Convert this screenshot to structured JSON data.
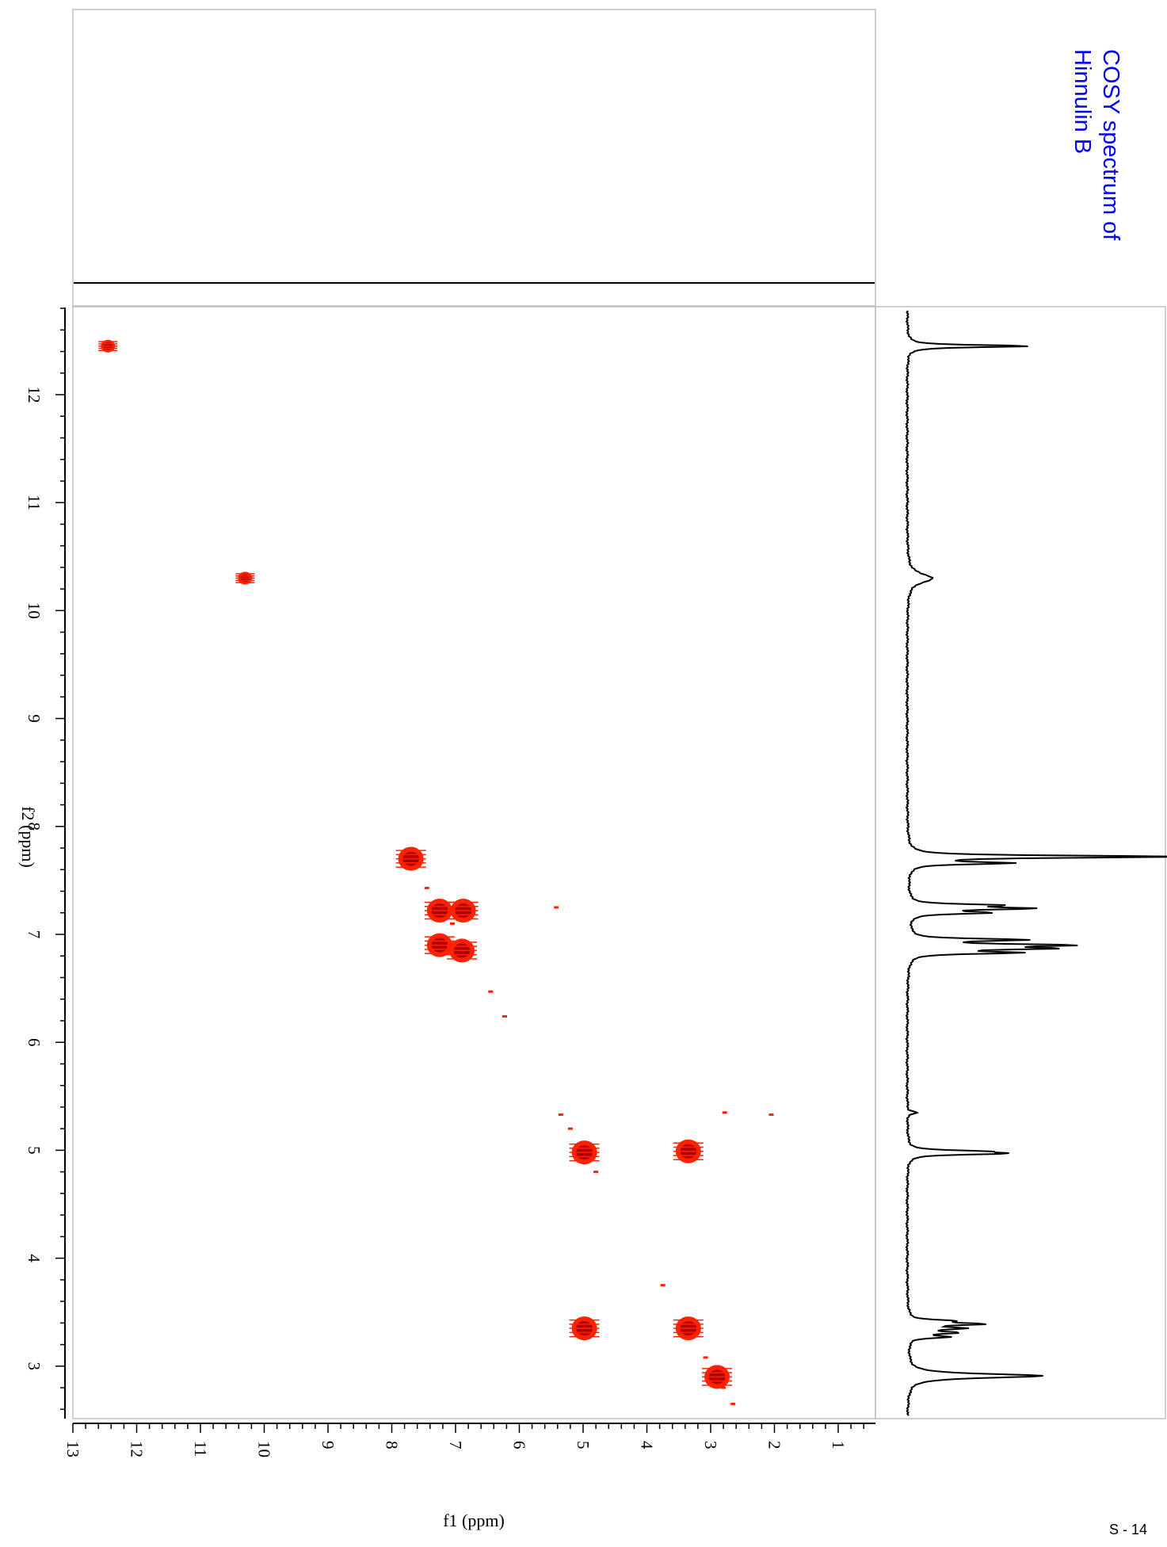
{
  "title": "COSY spectrum of\nHinnulin B",
  "title_color": "#0000ff",
  "page_number": "S - 14",
  "peak_color": "#ff2200",
  "peak_core_color": "#b00000",
  "chart_data": {
    "type": "heatmap",
    "title": "COSY spectrum of Hinnulin B",
    "xlabel": "f1 (ppm)",
    "ylabel": "f2 (ppm)",
    "f1_range": [
      13.0,
      0.6
    ],
    "f2_range": [
      12.8,
      2.5
    ],
    "f1_ticks": [
      "13",
      "12",
      "11",
      "10",
      "9",
      "8",
      "7",
      "6",
      "5",
      "4",
      "3",
      "2",
      "1"
    ],
    "f2_ticks": [
      "12",
      "11",
      "10",
      "9",
      "8",
      "7",
      "6",
      "5",
      "4",
      "3"
    ],
    "grid": false,
    "cross_peaks": [
      {
        "f1": 12.45,
        "f2": 12.45,
        "kind": "diagonal"
      },
      {
        "f1": 10.3,
        "f2": 10.3,
        "kind": "diagonal"
      },
      {
        "f1": 7.7,
        "f2": 7.7,
        "kind": "diagonal"
      },
      {
        "f1": 7.25,
        "f2": 7.22,
        "kind": "diagonal"
      },
      {
        "f1": 6.88,
        "f2": 7.22,
        "kind": "cross"
      },
      {
        "f1": 7.25,
        "f2": 6.9,
        "kind": "cross"
      },
      {
        "f1": 6.9,
        "f2": 6.85,
        "kind": "diagonal"
      },
      {
        "f1": 4.98,
        "f2": 4.98,
        "kind": "diagonal"
      },
      {
        "f1": 3.35,
        "f2": 4.99,
        "kind": "cross"
      },
      {
        "f1": 4.98,
        "f2": 3.35,
        "kind": "cross"
      },
      {
        "f1": 3.35,
        "f2": 3.35,
        "kind": "diagonal"
      },
      {
        "f1": 2.9,
        "f2": 2.9,
        "kind": "diagonal"
      }
    ],
    "minor_peaks": [
      {
        "f1": 7.45,
        "f2": 7.43
      },
      {
        "f1": 7.05,
        "f2": 7.1
      },
      {
        "f1": 6.45,
        "f2": 6.47
      },
      {
        "f1": 6.23,
        "f2": 6.24
      },
      {
        "f1": 5.35,
        "f2": 5.33
      },
      {
        "f1": 5.2,
        "f2": 5.2
      },
      {
        "f1": 4.8,
        "f2": 4.8
      },
      {
        "f1": 3.75,
        "f2": 3.75
      },
      {
        "f1": 3.08,
        "f2": 3.08
      },
      {
        "f1": 2.8,
        "f2": 2.8
      },
      {
        "f1": 2.65,
        "f2": 2.65
      },
      {
        "f1": 5.42,
        "f2": 7.25
      },
      {
        "f1": 2.78,
        "f2": 5.35
      },
      {
        "f1": 2.05,
        "f2": 5.33
      }
    ],
    "proton_1d_peaks": [
      {
        "ppm": 12.45,
        "intensity": 0.98
      },
      {
        "ppm": 10.3,
        "intensity": 0.2
      },
      {
        "ppm": 7.72,
        "intensity": 1.3
      },
      {
        "ppm": 7.72,
        "intensity": 0.9
      },
      {
        "ppm": 7.66,
        "intensity": 0.78
      },
      {
        "ppm": 7.27,
        "intensity": 0.65
      },
      {
        "ppm": 7.24,
        "intensity": 0.9
      },
      {
        "ppm": 7.2,
        "intensity": 0.6
      },
      {
        "ppm": 6.95,
        "intensity": 0.88
      },
      {
        "ppm": 6.9,
        "intensity": 1.18
      },
      {
        "ppm": 6.87,
        "intensity": 1.0
      },
      {
        "ppm": 6.83,
        "intensity": 0.8
      },
      {
        "ppm": 5.35,
        "intensity": 0.08
      },
      {
        "ppm": 4.99,
        "intensity": 0.48
      },
      {
        "ppm": 4.97,
        "intensity": 0.7
      },
      {
        "ppm": 3.42,
        "intensity": 0.3
      },
      {
        "ppm": 3.39,
        "intensity": 0.55
      },
      {
        "ppm": 3.35,
        "intensity": 0.4
      },
      {
        "ppm": 3.31,
        "intensity": 0.35
      },
      {
        "ppm": 3.27,
        "intensity": 0.3
      },
      {
        "ppm": 2.91,
        "intensity": 1.08
      }
    ]
  }
}
